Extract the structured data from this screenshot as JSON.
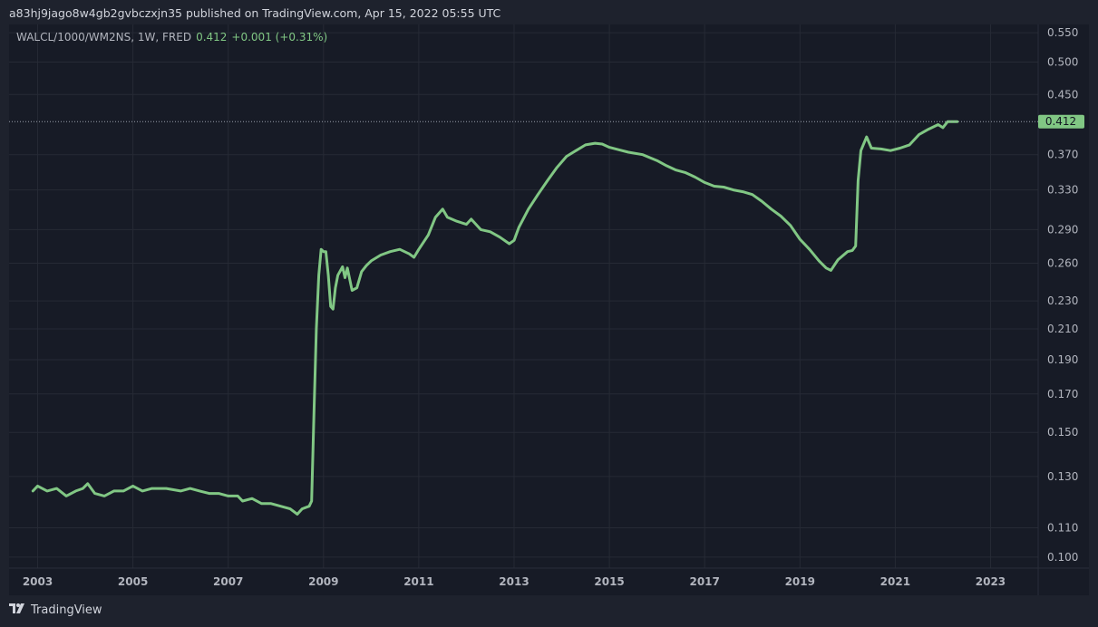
{
  "header": {
    "publish_text": "a83hj9jago8w4gb2gvbczxjn35 published on TradingView.com, Apr 15, 2022 05:55 UTC"
  },
  "legend": {
    "symbol": "WALCL/1000/WM2NS, 1W, FRED",
    "value": "0.412",
    "change": "+0.001 (+0.31%)"
  },
  "footer": {
    "brand": "TradingView"
  },
  "colors": {
    "line": "#81c784",
    "grid": "#262a35",
    "axis_text": "#b2b5be",
    "background": "#171b26",
    "page": "#1e222d"
  },
  "chart_data": {
    "type": "line",
    "title": "",
    "xlabel": "",
    "ylabel": "",
    "y_scale": "log",
    "xlim": [
      2002.4,
      2024.0
    ],
    "ylim": [
      0.0965,
      0.565
    ],
    "x_ticks": [
      "2003",
      "2005",
      "2007",
      "2009",
      "2011",
      "2013",
      "2015",
      "2017",
      "2019",
      "2021",
      "2023"
    ],
    "y_ticks": [
      "0.550",
      "0.500",
      "0.450",
      "0.370",
      "0.330",
      "0.290",
      "0.260",
      "0.230",
      "0.210",
      "0.190",
      "0.170",
      "0.150",
      "0.130",
      "0.110",
      "0.100"
    ],
    "last_value_label": "0.412",
    "grid": true,
    "series": [
      {
        "values": [
          [
            2002.9,
            0.124
          ],
          [
            2003.0,
            0.126
          ],
          [
            2003.2,
            0.124
          ],
          [
            2003.4,
            0.125
          ],
          [
            2003.6,
            0.122
          ],
          [
            2003.8,
            0.124
          ],
          [
            2003.95,
            0.125
          ],
          [
            2004.05,
            0.127
          ],
          [
            2004.2,
            0.123
          ],
          [
            2004.4,
            0.122
          ],
          [
            2004.6,
            0.124
          ],
          [
            2004.8,
            0.124
          ],
          [
            2005.0,
            0.126
          ],
          [
            2005.2,
            0.124
          ],
          [
            2005.4,
            0.125
          ],
          [
            2005.7,
            0.125
          ],
          [
            2006.0,
            0.124
          ],
          [
            2006.2,
            0.125
          ],
          [
            2006.4,
            0.124
          ],
          [
            2006.6,
            0.123
          ],
          [
            2006.8,
            0.123
          ],
          [
            2007.0,
            0.122
          ],
          [
            2007.2,
            0.122
          ],
          [
            2007.3,
            0.12
          ],
          [
            2007.5,
            0.121
          ],
          [
            2007.7,
            0.119
          ],
          [
            2007.9,
            0.119
          ],
          [
            2008.1,
            0.118
          ],
          [
            2008.3,
            0.117
          ],
          [
            2008.45,
            0.115
          ],
          [
            2008.55,
            0.117
          ],
          [
            2008.7,
            0.118
          ],
          [
            2008.75,
            0.12
          ],
          [
            2008.8,
            0.16
          ],
          [
            2008.85,
            0.21
          ],
          [
            2008.9,
            0.25
          ],
          [
            2008.95,
            0.272
          ],
          [
            2009.0,
            0.27
          ],
          [
            2009.05,
            0.27
          ],
          [
            2009.1,
            0.25
          ],
          [
            2009.15,
            0.226
          ],
          [
            2009.2,
            0.224
          ],
          [
            2009.25,
            0.24
          ],
          [
            2009.3,
            0.25
          ],
          [
            2009.4,
            0.257
          ],
          [
            2009.45,
            0.248
          ],
          [
            2009.5,
            0.256
          ],
          [
            2009.6,
            0.238
          ],
          [
            2009.7,
            0.24
          ],
          [
            2009.8,
            0.253
          ],
          [
            2009.9,
            0.258
          ],
          [
            2010.0,
            0.262
          ],
          [
            2010.2,
            0.267
          ],
          [
            2010.4,
            0.27
          ],
          [
            2010.6,
            0.272
          ],
          [
            2010.8,
            0.268
          ],
          [
            2010.9,
            0.265
          ],
          [
            2011.0,
            0.272
          ],
          [
            2011.2,
            0.285
          ],
          [
            2011.35,
            0.302
          ],
          [
            2011.5,
            0.31
          ],
          [
            2011.6,
            0.302
          ],
          [
            2011.8,
            0.298
          ],
          [
            2012.0,
            0.295
          ],
          [
            2012.1,
            0.3
          ],
          [
            2012.3,
            0.29
          ],
          [
            2012.5,
            0.288
          ],
          [
            2012.7,
            0.283
          ],
          [
            2012.9,
            0.277
          ],
          [
            2013.0,
            0.28
          ],
          [
            2013.1,
            0.292
          ],
          [
            2013.3,
            0.31
          ],
          [
            2013.5,
            0.325
          ],
          [
            2013.7,
            0.34
          ],
          [
            2013.9,
            0.355
          ],
          [
            2014.1,
            0.368
          ],
          [
            2014.3,
            0.375
          ],
          [
            2014.5,
            0.382
          ],
          [
            2014.7,
            0.384
          ],
          [
            2014.85,
            0.383
          ],
          [
            2015.0,
            0.379
          ],
          [
            2015.2,
            0.376
          ],
          [
            2015.4,
            0.373
          ],
          [
            2015.7,
            0.37
          ],
          [
            2016.0,
            0.363
          ],
          [
            2016.2,
            0.357
          ],
          [
            2016.4,
            0.352
          ],
          [
            2016.6,
            0.349
          ],
          [
            2016.8,
            0.344
          ],
          [
            2017.0,
            0.338
          ],
          [
            2017.2,
            0.334
          ],
          [
            2017.4,
            0.333
          ],
          [
            2017.6,
            0.33
          ],
          [
            2017.8,
            0.328
          ],
          [
            2018.0,
            0.325
          ],
          [
            2018.2,
            0.318
          ],
          [
            2018.4,
            0.31
          ],
          [
            2018.6,
            0.303
          ],
          [
            2018.8,
            0.294
          ],
          [
            2019.0,
            0.281
          ],
          [
            2019.2,
            0.272
          ],
          [
            2019.4,
            0.262
          ],
          [
            2019.55,
            0.256
          ],
          [
            2019.65,
            0.254
          ],
          [
            2019.8,
            0.263
          ],
          [
            2020.0,
            0.27
          ],
          [
            2020.1,
            0.271
          ],
          [
            2020.17,
            0.275
          ],
          [
            2020.22,
            0.34
          ],
          [
            2020.28,
            0.375
          ],
          [
            2020.4,
            0.392
          ],
          [
            2020.5,
            0.378
          ],
          [
            2020.7,
            0.377
          ],
          [
            2020.9,
            0.375
          ],
          [
            2021.1,
            0.378
          ],
          [
            2021.3,
            0.382
          ],
          [
            2021.5,
            0.395
          ],
          [
            2021.7,
            0.402
          ],
          [
            2021.9,
            0.408
          ],
          [
            2022.0,
            0.404
          ],
          [
            2022.1,
            0.412
          ],
          [
            2022.3,
            0.412
          ]
        ]
      }
    ]
  }
}
